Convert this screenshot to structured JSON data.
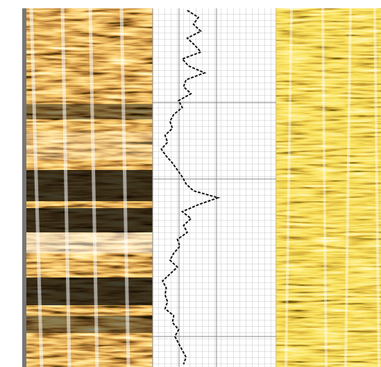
{
  "chart_data": {
    "type": "line",
    "x": [
      3,
      13,
      23,
      33,
      43,
      53,
      63,
      73,
      83,
      93,
      103,
      113,
      123,
      133,
      143,
      153,
      163,
      173,
      183,
      193,
      203,
      213,
      223,
      233,
      243,
      253,
      263,
      273,
      278,
      283,
      293,
      303,
      313,
      323,
      333,
      343,
      353,
      363,
      373,
      383,
      393,
      403,
      413,
      423,
      433,
      443,
      453,
      463,
      473,
      483,
      493,
      503,
      513
    ],
    "values": [
      28,
      37,
      33,
      39,
      28,
      34,
      39,
      24,
      29,
      42,
      27,
      25,
      31,
      21,
      24,
      17,
      14,
      16,
      10,
      12,
      7,
      11,
      16,
      20,
      24,
      27,
      33,
      53,
      45,
      37,
      24,
      31,
      25,
      28,
      20,
      22,
      17,
      14,
      20,
      14,
      8,
      11,
      10,
      12,
      10,
      17,
      16,
      21,
      18,
      21,
      24,
      27,
      25
    ],
    "color": "#111111",
    "xlim": [
      0,
      517
    ],
    "ylim": [
      0,
      100
    ],
    "grid": true
  }
}
